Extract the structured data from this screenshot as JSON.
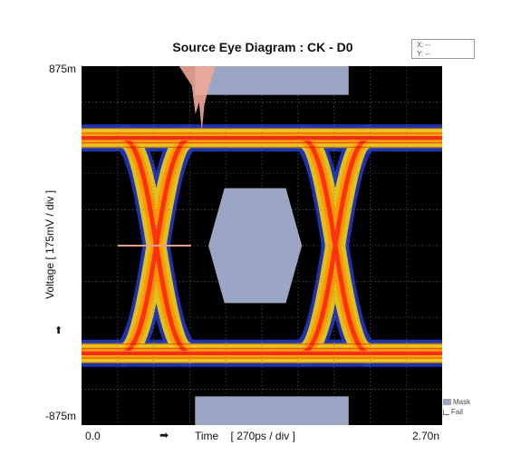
{
  "chart_data": {
    "type": "eye diagram",
    "title": "Source Eye Diagram : CK - D0",
    "cursor_readout": {
      "x": "X:  --",
      "y": "Y:  --"
    },
    "y_axis": {
      "label": "Voltage   [ 175mV / div ]",
      "top_label": "875m",
      "bottom_label": "-875m",
      "range_mV": [
        -875,
        875
      ],
      "divisions": 10,
      "mV_per_div": 175
    },
    "x_axis": {
      "label": "Time    [ 270ps / div ]",
      "left_label": "0.0",
      "right_label": "2.70n",
      "range_ps": [
        0,
        2700
      ],
      "divisions": 10,
      "ps_per_div": 270
    },
    "arrow_marker": "➡",
    "y_arrow_marker": "⬆",
    "grid": true,
    "levels_mV": {
      "high": 525,
      "low": -525
    },
    "crossings_ps": [
      560,
      1900
    ],
    "mask": {
      "center_hexagon": [
        [
          950,
          0
        ],
        [
          1070,
          280
        ],
        [
          1530,
          280
        ],
        [
          1650,
          0
        ],
        [
          1530,
          -280
        ],
        [
          1070,
          -280
        ]
      ],
      "top_bar": {
        "x": [
          850,
          2000
        ],
        "y": [
          735,
          875
        ]
      },
      "bottom_bar": {
        "x": [
          850,
          2000
        ],
        "y": [
          -875,
          -735
        ]
      }
    },
    "fail_marker": {
      "x": [
        270,
        820
      ],
      "y": 0
    },
    "legend": [
      {
        "name": "Mask",
        "color": "#9aa6c4"
      },
      {
        "name": "Fail",
        "color": "#777777"
      }
    ],
    "colors": {
      "background": "#000000",
      "eye_core": "#ff3010",
      "eye_mid": "#ff9900",
      "eye_outer": "#e0c020",
      "eye_fringe": "#2038c0",
      "grid": "#777777",
      "spike": "#f0a898",
      "fail_line": "#e4a08c"
    }
  }
}
